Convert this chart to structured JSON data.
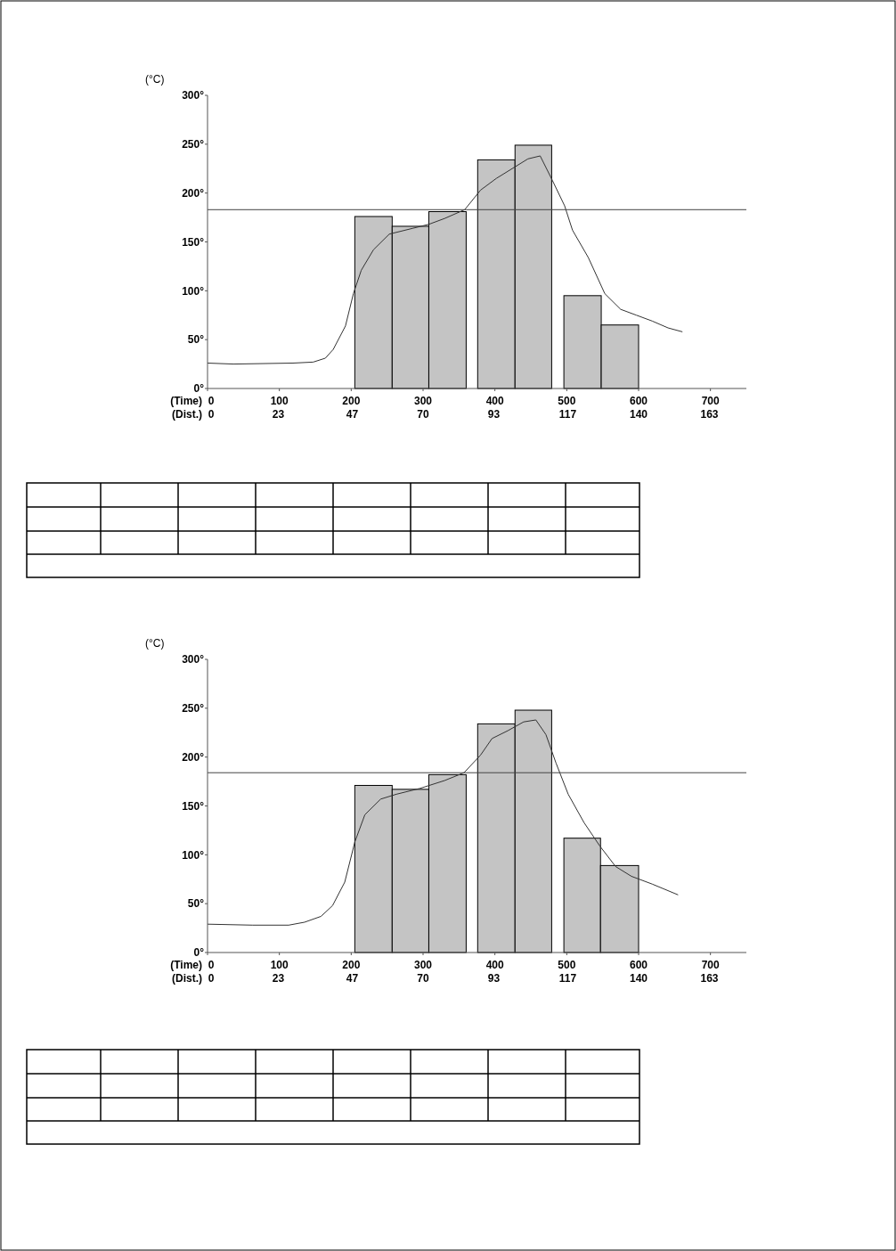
{
  "chart_data": [
    {
      "type": "histogram",
      "ylabel": "(°C)",
      "xlabel": "(Time)",
      "x2label": "(Dist.)",
      "xlim": [
        0,
        750
      ],
      "xticks": [
        0,
        100,
        200,
        300,
        400,
        500,
        600,
        700
      ],
      "x2lim": [
        0,
        175
      ],
      "x2ticks": [
        0,
        23,
        47,
        70,
        93,
        117,
        140,
        163
      ],
      "ylim": [
        0,
        300
      ],
      "yticks": [
        {
          "value": 0,
          "label": "0°"
        },
        {
          "value": 50,
          "label": "50°"
        },
        {
          "value": 100,
          "label": "100°"
        },
        {
          "value": 150,
          "label": "150°"
        },
        {
          "value": 200,
          "label": "200°"
        },
        {
          "value": 250,
          "label": "250°"
        },
        {
          "value": 300,
          "label": "300°"
        }
      ],
      "grid": false,
      "ref_lines": [
        {
          "axis": "y",
          "value": 183,
          "color": "#444444"
        }
      ],
      "series": [
        {
          "type": "histogram",
          "color": "#c4c4c4",
          "bins": [
            205,
            257,
            308,
            360,
            376,
            428,
            479,
            496,
            548,
            600
          ],
          "values": [
            176,
            166,
            181,
            null,
            234,
            249,
            null,
            95,
            65
          ]
        },
        {
          "type": "line",
          "color": "#333333",
          "x": [
            0,
            36,
            119,
            147,
            164,
            175,
            192,
            203,
            214,
            231,
            253,
            286,
            308,
            330,
            358,
            380,
            402,
            424,
            446,
            463,
            480,
            497,
            508,
            530,
            553,
            575,
            597,
            619,
            641,
            661
          ],
          "values": [
            26,
            25,
            26,
            27,
            31,
            40,
            64,
            97,
            121,
            142,
            158,
            164,
            168,
            174,
            183,
            203,
            215,
            225,
            235,
            238,
            213,
            187,
            162,
            134,
            97,
            81,
            75,
            69,
            62,
            58
          ]
        }
      ]
    },
    {
      "type": "histogram",
      "ylabel": "(°C)",
      "xlabel": "(Time)",
      "x2label": "(Dist.)",
      "xlim": [
        0,
        750
      ],
      "xticks": [
        0,
        100,
        200,
        300,
        400,
        500,
        600,
        700
      ],
      "x2lim": [
        0,
        175
      ],
      "x2ticks": [
        0,
        23,
        47,
        70,
        93,
        117,
        140,
        163
      ],
      "ylim": [
        0,
        300
      ],
      "yticks": [
        {
          "value": 0,
          "label": "0°"
        },
        {
          "value": 50,
          "label": "50°"
        },
        {
          "value": 100,
          "label": "100°"
        },
        {
          "value": 150,
          "label": "150°"
        },
        {
          "value": 200,
          "label": "200°"
        },
        {
          "value": 250,
          "label": "250°"
        },
        {
          "value": 300,
          "label": "300°"
        }
      ],
      "grid": false,
      "ref_lines": [
        {
          "axis": "y",
          "value": 184,
          "color": "#444444"
        }
      ],
      "series": [
        {
          "type": "histogram",
          "color": "#c4c4c4",
          "bins": [
            205,
            257,
            308,
            360,
            376,
            428,
            479,
            496,
            547,
            600
          ],
          "values": [
            171,
            167,
            182,
            null,
            234,
            248,
            null,
            117,
            89
          ]
        },
        {
          "type": "line",
          "color": "#333333",
          "x": [
            0,
            63,
            113,
            135,
            158,
            174,
            191,
            205,
            219,
            241,
            263,
            296,
            330,
            357,
            380,
            396,
            418,
            440,
            457,
            471,
            485,
            502,
            524,
            546,
            568,
            590,
            619,
            655
          ],
          "values": [
            29,
            28,
            28,
            31,
            37,
            48,
            72,
            113,
            141,
            157,
            162,
            168,
            176,
            184,
            202,
            219,
            227,
            236,
            238,
            223,
            194,
            162,
            133,
            109,
            88,
            78,
            70,
            59
          ]
        }
      ]
    }
  ]
}
